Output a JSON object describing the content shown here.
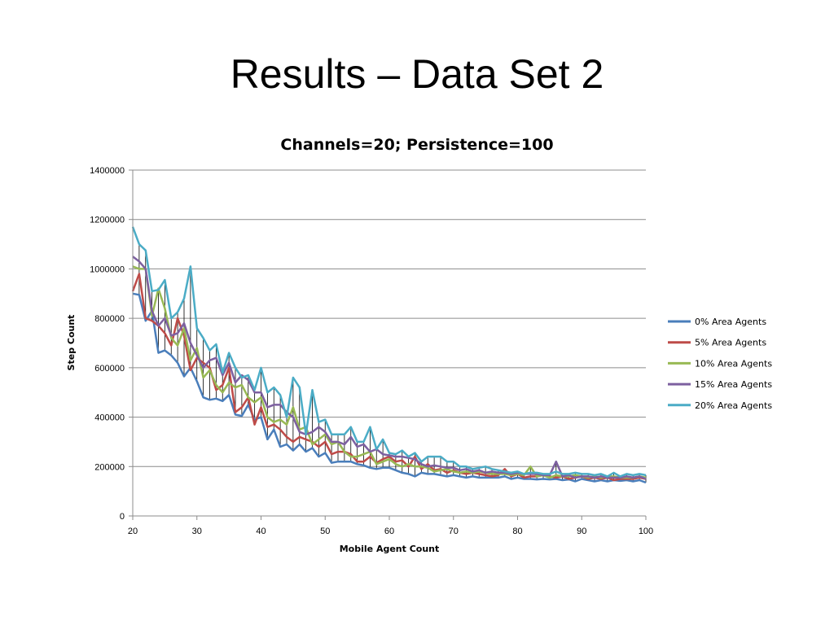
{
  "slide": {
    "title": "Results – Data Set 2"
  },
  "chart_data": {
    "type": "line",
    "title": "Channels=20; Persistence=100",
    "xlabel": "Mobile Agent Count",
    "ylabel": "Step Count",
    "xlim": [
      20,
      100
    ],
    "ylim": [
      0,
      1400000
    ],
    "xticks": [
      20,
      30,
      40,
      50,
      60,
      70,
      80,
      90,
      100
    ],
    "yticks": [
      0,
      200000,
      400000,
      600000,
      800000,
      1000000,
      1200000,
      1400000
    ],
    "grid": "horizontal",
    "legend_position": "right",
    "x": [
      20,
      21,
      22,
      23,
      24,
      25,
      26,
      27,
      28,
      29,
      30,
      31,
      32,
      33,
      34,
      35,
      36,
      37,
      38,
      39,
      40,
      41,
      42,
      43,
      44,
      45,
      46,
      47,
      48,
      49,
      50,
      51,
      52,
      53,
      54,
      55,
      56,
      57,
      58,
      59,
      60,
      61,
      62,
      63,
      64,
      65,
      66,
      67,
      68,
      69,
      70,
      71,
      72,
      73,
      74,
      75,
      76,
      77,
      78,
      79,
      80,
      81,
      82,
      83,
      84,
      85,
      86,
      87,
      88,
      89,
      90,
      91,
      92,
      93,
      94,
      95,
      96,
      97,
      98,
      99,
      100
    ],
    "series": [
      {
        "name": "0% Area Agents",
        "color": "#4a7ebb",
        "values": [
          900000,
          895000,
          790000,
          830000,
          660000,
          670000,
          650000,
          620000,
          565000,
          600000,
          545000,
          480000,
          470000,
          475000,
          465000,
          490000,
          410000,
          405000,
          450000,
          390000,
          400000,
          310000,
          350000,
          280000,
          290000,
          265000,
          290000,
          260000,
          275000,
          240000,
          255000,
          215000,
          220000,
          220000,
          220000,
          210000,
          205000,
          195000,
          190000,
          195000,
          195000,
          185000,
          175000,
          170000,
          160000,
          175000,
          170000,
          170000,
          165000,
          160000,
          165000,
          160000,
          155000,
          160000,
          155000,
          155000,
          155000,
          155000,
          160000,
          150000,
          155000,
          150000,
          150000,
          148000,
          150000,
          148000,
          150000,
          145000,
          148000,
          140000,
          150000,
          145000,
          140000,
          145000,
          140000,
          145000,
          142000,
          145000,
          140000,
          145000,
          135000
        ]
      },
      {
        "name": "5% Area Agents",
        "color": "#be4b48",
        "values": [
          910000,
          980000,
          800000,
          790000,
          770000,
          740000,
          690000,
          800000,
          730000,
          590000,
          640000,
          620000,
          600000,
          510000,
          530000,
          600000,
          420000,
          440000,
          480000,
          370000,
          440000,
          360000,
          370000,
          350000,
          320000,
          300000,
          320000,
          310000,
          300000,
          280000,
          300000,
          250000,
          260000,
          260000,
          250000,
          220000,
          220000,
          240000,
          215000,
          230000,
          240000,
          220000,
          225000,
          200000,
          240000,
          190000,
          210000,
          185000,
          190000,
          175000,
          185000,
          175000,
          170000,
          175000,
          170000,
          165000,
          160000,
          165000,
          190000,
          160000,
          170000,
          155000,
          160000,
          160000,
          165000,
          160000,
          155000,
          160000,
          150000,
          155000,
          160000,
          150000,
          155000,
          150000,
          155000,
          145000,
          150000,
          150000,
          150000,
          155000,
          150000
        ]
      },
      {
        "name": "10% Area Agents",
        "color": "#98b954",
        "values": [
          1010000,
          1000000,
          1000000,
          810000,
          920000,
          840000,
          720000,
          690000,
          760000,
          630000,
          680000,
          560000,
          590000,
          530000,
          500000,
          540000,
          520000,
          530000,
          480000,
          460000,
          480000,
          400000,
          380000,
          390000,
          370000,
          440000,
          350000,
          360000,
          290000,
          310000,
          330000,
          290000,
          300000,
          260000,
          240000,
          240000,
          250000,
          260000,
          210000,
          220000,
          230000,
          210000,
          200000,
          210000,
          200000,
          200000,
          195000,
          180000,
          185000,
          190000,
          180000,
          175000,
          180000,
          175000,
          180000,
          175000,
          170000,
          170000,
          170000,
          165000,
          170000,
          165000,
          200000,
          160000,
          165000,
          155000,
          165000,
          160000,
          160000,
          165000,
          160000,
          155000,
          160000,
          155000,
          160000,
          160000,
          155000,
          155000,
          155000,
          160000,
          155000
        ]
      },
      {
        "name": "15% Area Agents",
        "color": "#7d60a0",
        "values": [
          1050000,
          1030000,
          1000000,
          830000,
          770000,
          800000,
          730000,
          740000,
          780000,
          700000,
          650000,
          600000,
          630000,
          640000,
          570000,
          620000,
          540000,
          570000,
          550000,
          500000,
          500000,
          440000,
          450000,
          450000,
          420000,
          400000,
          340000,
          330000,
          340000,
          360000,
          340000,
          300000,
          300000,
          290000,
          320000,
          280000,
          290000,
          260000,
          270000,
          250000,
          245000,
          240000,
          240000,
          235000,
          230000,
          210000,
          200000,
          205000,
          200000,
          195000,
          195000,
          185000,
          190000,
          180000,
          185000,
          175000,
          180000,
          175000,
          175000,
          170000,
          175000,
          170000,
          170000,
          170000,
          165000,
          165000,
          220000,
          160000,
          165000,
          155000,
          160000,
          160000,
          155000,
          160000,
          155000,
          155000,
          155000,
          160000,
          155000,
          160000,
          150000
        ]
      },
      {
        "name": "20% Area Agents",
        "color": "#4bacc6",
        "values": [
          1170000,
          1100000,
          1075000,
          910000,
          915000,
          955000,
          800000,
          825000,
          880000,
          1010000,
          760000,
          720000,
          670000,
          695000,
          580000,
          660000,
          600000,
          560000,
          570000,
          510000,
          600000,
          500000,
          520000,
          490000,
          400000,
          560000,
          520000,
          330000,
          510000,
          380000,
          390000,
          330000,
          330000,
          330000,
          360000,
          300000,
          300000,
          360000,
          270000,
          310000,
          255000,
          250000,
          265000,
          240000,
          255000,
          220000,
          240000,
          240000,
          240000,
          220000,
          220000,
          200000,
          200000,
          190000,
          195000,
          200000,
          190000,
          185000,
          180000,
          175000,
          180000,
          170000,
          175000,
          175000,
          170000,
          170000,
          180000,
          170000,
          170000,
          175000,
          170000,
          170000,
          165000,
          170000,
          160000,
          175000,
          160000,
          170000,
          165000,
          170000,
          165000
        ]
      }
    ]
  }
}
